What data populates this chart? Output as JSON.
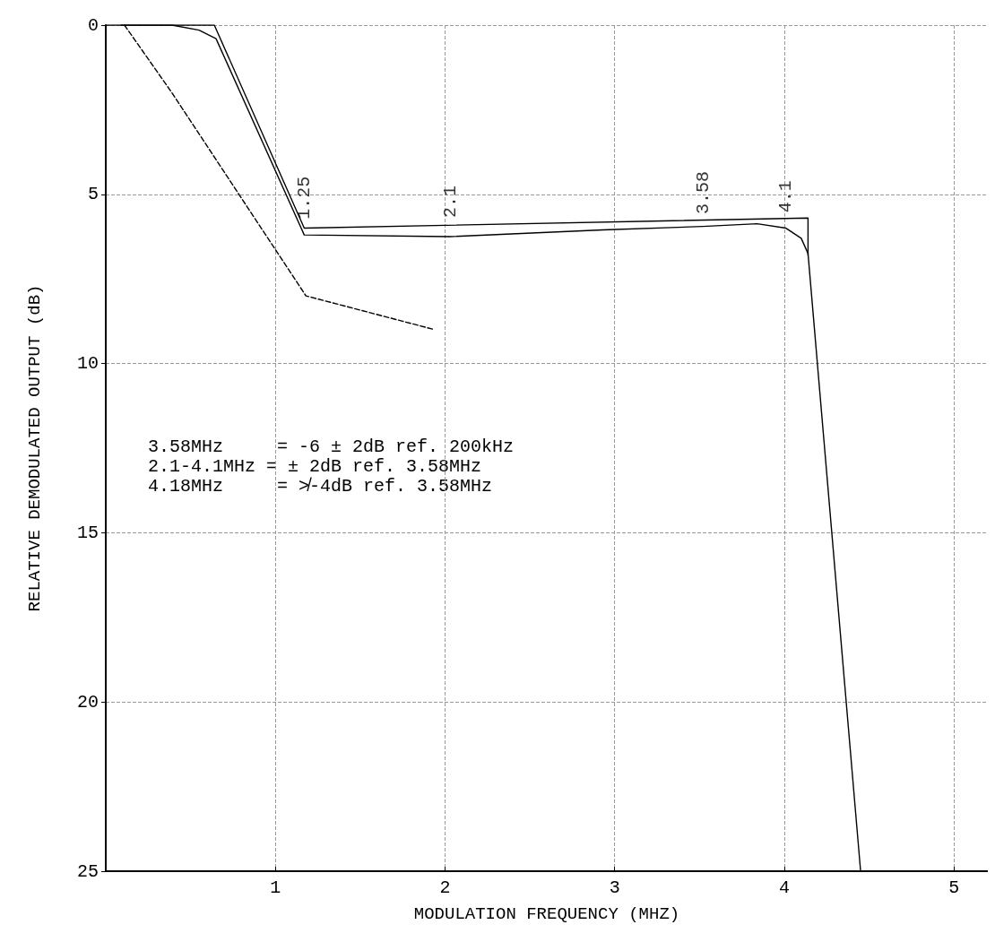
{
  "chart_data": {
    "type": "line",
    "xlabel": "MODULATION FREQUENCY (MHZ)",
    "ylabel": "RELATIVE DEMODULATED OUTPUT (dB)",
    "xlim": [
      0,
      5.2
    ],
    "xticks": [
      1,
      2,
      3,
      4,
      5
    ],
    "ylim": [
      25,
      0
    ],
    "yticks": [
      0,
      5,
      10,
      15,
      20,
      25
    ],
    "grid": true,
    "series": [
      {
        "color": "#000000",
        "line_style": "solid",
        "x": [
          0,
          0.64,
          1.17,
          4.14,
          4.14
        ],
        "values": [
          0,
          0,
          6.0,
          5.7,
          6.8
        ]
      },
      {
        "color": "#000000",
        "line_style": "solid",
        "x": [
          0.09,
          0.39,
          0.55,
          0.65,
          1.17,
          2.03,
          2.93,
          3.52,
          3.84,
          4.01,
          4.1,
          4.14,
          4.45
        ],
        "values": [
          0,
          0,
          0.15,
          0.4,
          6.2,
          6.25,
          6.05,
          5.95,
          5.87,
          6.0,
          6.3,
          6.75,
          25
        ]
      },
      {
        "color": "#000000",
        "line_style": "dashed",
        "x": [
          0.11,
          0.39,
          1.18,
          1.94
        ],
        "values": [
          0,
          2.0,
          8.0,
          9.0
        ]
      }
    ],
    "annotations": [
      {
        "text": "1.25",
        "x": 1.17,
        "y": 5.9
      },
      {
        "text": "2.1",
        "x": 2.03,
        "y": 5.85
      },
      {
        "text": "3.58",
        "x": 3.52,
        "y": 5.75
      },
      {
        "text": "4.1",
        "x": 4.01,
        "y": 5.7
      },
      "3.58MHz     = -6 ± 2dB ref. 200kHz",
      "2.1-4.1MHz = ± 2dB ref. 3.58MHz",
      "4.18MHz     = ≯-4dB ref. 3.58MHz"
    ]
  }
}
